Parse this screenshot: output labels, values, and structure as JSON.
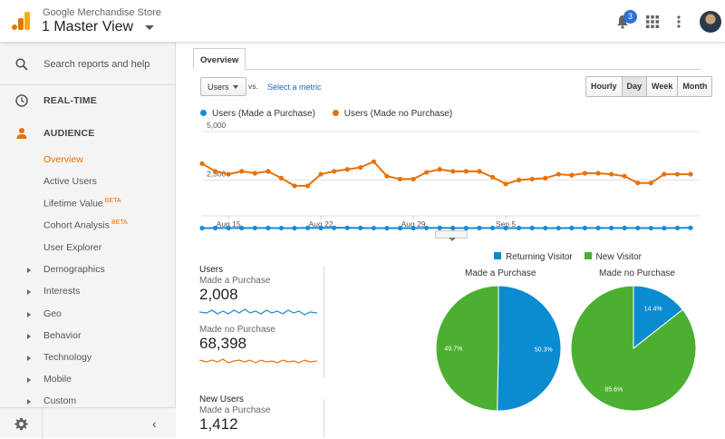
{
  "header": {
    "account_name": "Google Merchandise Store",
    "view_name": "1 Master View",
    "notification_count": "3"
  },
  "sidebar": {
    "search_label": "Search reports and help",
    "realtime_label": "REAL-TIME",
    "audience_label": "AUDIENCE",
    "beta_label": "BETA",
    "items": [
      {
        "label": "Overview"
      },
      {
        "label": "Active Users"
      },
      {
        "label": "Lifetime Value"
      },
      {
        "label": "Cohort Analysis"
      },
      {
        "label": "User Explorer"
      },
      {
        "label": "Demographics"
      },
      {
        "label": "Interests"
      },
      {
        "label": "Geo"
      },
      {
        "label": "Behavior"
      },
      {
        "label": "Technology"
      },
      {
        "label": "Mobile"
      },
      {
        "label": "Custom"
      }
    ]
  },
  "main": {
    "tab_label": "Overview",
    "metric_select": "Users",
    "vs_label": "vs.",
    "select_metric_label": "Select a metric",
    "granularity": [
      "Hourly",
      "Day",
      "Week",
      "Month"
    ],
    "selected_granularity": "Day"
  },
  "colors": {
    "blue": "#1d8ad3",
    "orange": "#e8710a",
    "pie_blue": "#0b8bd0",
    "pie_green": "#4daf32",
    "accent": "#e8710a"
  },
  "chart_data": [
    {
      "type": "line",
      "title": "",
      "series": [
        {
          "name": "Users (Made a Purchase)",
          "values": [
            25,
            30,
            30,
            30,
            28,
            30,
            25,
            22,
            35,
            35,
            38,
            38,
            32,
            25,
            22,
            22,
            22,
            32,
            35,
            30,
            22,
            30,
            32,
            25,
            30,
            28,
            25,
            25,
            28,
            28,
            28,
            30,
            30,
            30,
            25,
            22,
            32,
            38
          ]
        },
        {
          "name": "Users (Made no Purchase)",
          "values": [
            3350,
            2950,
            2800,
            2950,
            2850,
            2950,
            2600,
            2200,
            2200,
            2800,
            2950,
            3050,
            3150,
            3450,
            2700,
            2550,
            2550,
            2900,
            3050,
            2950,
            2950,
            2950,
            2650,
            2300,
            2500,
            2550,
            2600,
            2800,
            2750,
            2850,
            2850,
            2800,
            2700,
            2350,
            2350,
            2800,
            2800,
            2800
          ]
        }
      ],
      "x_tick_labels": [
        "Aug 15",
        "Aug 22",
        "Aug 29",
        "Sep 5"
      ],
      "y_tick_labels": [
        "5,000",
        "2,500"
      ],
      "ylim": [
        0,
        5000
      ]
    },
    {
      "type": "pie",
      "title": "Made a Purchase",
      "categories": [
        "Returning Visitor",
        "New Visitor"
      ],
      "values": [
        50.3,
        49.7
      ],
      "labels": [
        "50.3%",
        "49.7%"
      ]
    },
    {
      "type": "pie",
      "title": "Made no Purchase",
      "categories": [
        "Returning Visitor",
        "New Visitor"
      ],
      "values": [
        14.4,
        85.6
      ],
      "labels": [
        "14.4%",
        "85.6%"
      ]
    }
  ],
  "stats": {
    "users_header": "Users",
    "made_purchase_label": "Made a Purchase",
    "made_purchase_value": "2,008",
    "made_no_purchase_label": "Made no Purchase",
    "made_no_purchase_value": "68,398",
    "new_users_header": "New Users",
    "new_made_purchase_label": "Made a Purchase",
    "new_made_purchase_value": "1,412"
  }
}
